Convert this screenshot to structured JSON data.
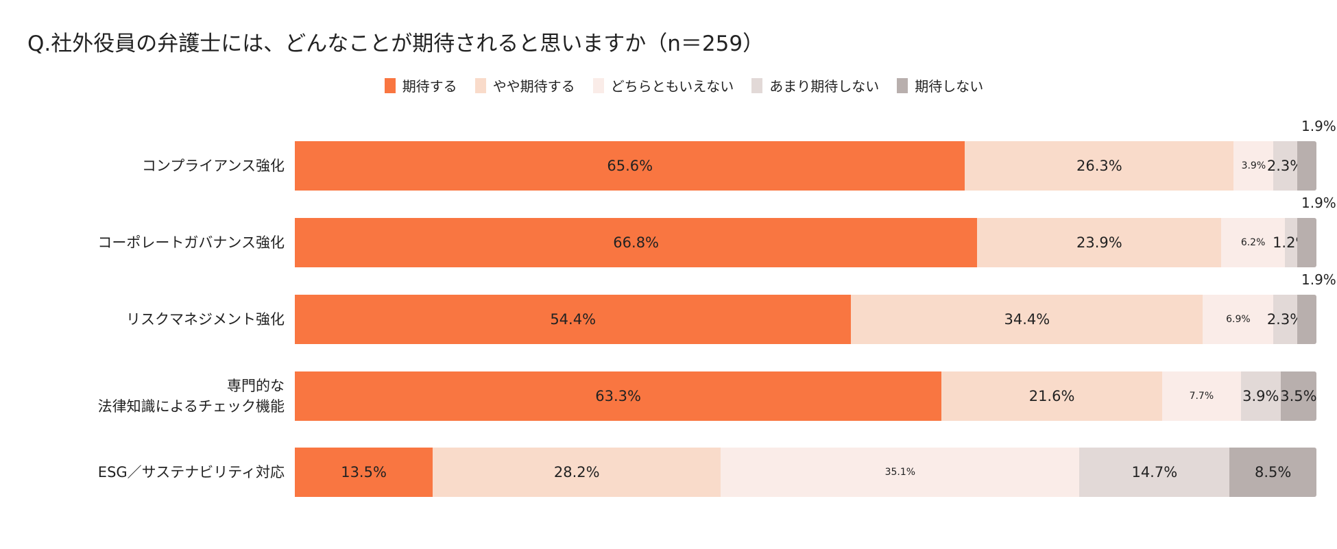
{
  "chart_data": {
    "type": "bar",
    "orientation": "horizontal",
    "stacked": true,
    "percent": true,
    "title": "Q.社外役員の弁護士には、どんなことが期待されると思いますか（n＝259）",
    "legend_position": "top",
    "categories": [
      "コンプライアンス強化",
      "コーポレートガバナンス強化",
      "リスクマネジメント強化",
      "専門的な\n法律知識によるチェック機能",
      "ESG／サステナビリティ対応"
    ],
    "series": [
      {
        "name": "期待する",
        "color": "#F97641",
        "values": [
          65.6,
          66.8,
          54.4,
          63.3,
          13.5
        ]
      },
      {
        "name": "やや期待する",
        "color": "#F9DBCA",
        "values": [
          26.3,
          23.9,
          34.4,
          21.6,
          28.2
        ]
      },
      {
        "name": "どちらともいえない",
        "color": "#FAECE8",
        "values": [
          3.9,
          6.2,
          6.9,
          7.7,
          35.1
        ]
      },
      {
        "name": "あまり期待しない",
        "color": "#E2D9D7",
        "values": [
          2.3,
          1.2,
          2.3,
          3.9,
          14.7
        ]
      },
      {
        "name": "期待しない",
        "color": "#B8AFAD",
        "values": [
          1.9,
          1.9,
          1.9,
          3.5,
          8.5
        ]
      }
    ],
    "xlim": [
      0,
      100
    ]
  }
}
